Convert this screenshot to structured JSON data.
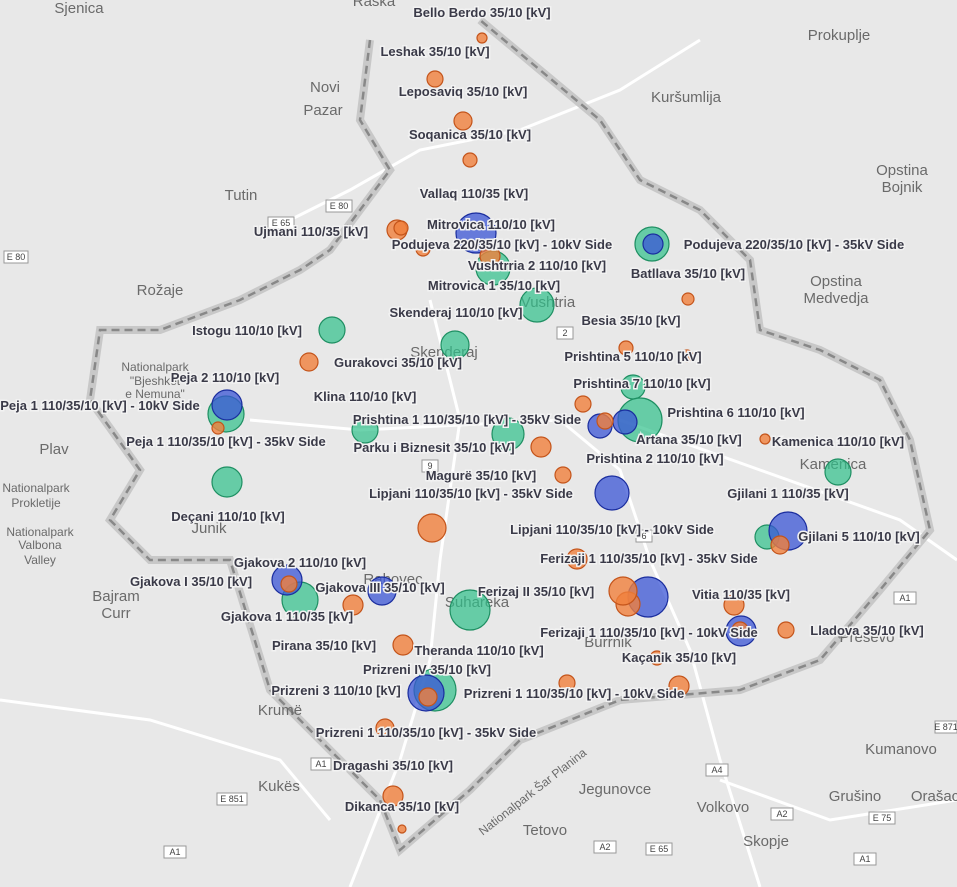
{
  "places": [
    "Sjenica",
    "Raška",
    "Prokuplje",
    "Novi",
    "Pazar",
    "Kuršumlija",
    "Opstina",
    "Bojnik",
    "Tutin",
    "Rožaje",
    "Opstina",
    "Medvedja",
    "Plav",
    "Nationalpark",
    "Prokletije",
    "Nationalpark",
    "Valbona",
    "Valley",
    "Junik",
    "Bajram",
    "Curr",
    "Rahovec",
    "Suhareka",
    "Burrnik",
    "Krumë",
    "Kukës",
    "Jegunovce",
    "Volkovo",
    "Tetovo",
    "Skopje",
    "Kumanovo",
    "Grušino",
    "Orašac",
    "Preševo",
    "Kamenica",
    "Vushtria",
    "Skenderaj",
    "Nationalpark",
    "\"Bjeshkët",
    "e Nemuna\"",
    "Nationalpark Šar Planina"
  ],
  "roads": [
    "E 65",
    "E 80",
    "E 80",
    "2",
    "9",
    "6",
    "A1",
    "A1",
    "E 851",
    "A4",
    "A2",
    "A2",
    "E 65",
    "E 75",
    "A1",
    "A1",
    "E 871"
  ],
  "substations": [
    "Bello Berdo 35/10 [kV]",
    "Leshak 35/10 [kV]",
    "Leposaviq 35/10 [kV]",
    "Soqanica 35/10 [kV]",
    "Vallaq 110/35 [kV]",
    "Mitrovica 110/10 [kV]",
    "Ujmani 110/35 [kV]",
    "Podujeva 220/35/10 [kV] - 10kV Side",
    "Podujeva 220/35/10 [kV] - 35kV Side",
    "Vushtrria 2 110/10 [kV]",
    "Batllava 35/10 [kV]",
    "Mitrovica 1 35/10 [kV]",
    "Skenderaj 110/10 [kV]",
    "Besia 35/10 [kV]",
    "Istogu 110/10 [kV]",
    "Prishtina 5 110/10 [kV]",
    "Gurakovci 35/10 [kV]",
    "Peja 2 110/10 [kV]",
    "Prishtina 7 110/10 [kV]",
    "Klina 110/10 [kV]",
    "Peja 1 110/35/10 [kV] - 10kV Side",
    "Prishtina 6 110/10 [kV]",
    "Prishtina 1 110/35/10 [kV] - 35kV Side",
    "Artana 35/10 [kV]",
    "Kamenica 110/10 [kV]",
    "Peja 1 110/35/10 [kV] - 35kV Side",
    "Parku i Biznesit 35/10 [kV]",
    "Prishtina 2 110/10 [kV]",
    "Magurë 35/10 [kV]",
    "Lipjani 110/35/10 [kV] - 35kV Side",
    "Gjilani 1 110/35 [kV]",
    "Deçani 110/10 [kV]",
    "Lipjani 110/35/10 [kV] - 10kV Side",
    "Gjilani 5 110/10 [kV]",
    "Ferizaji 1 110/35/10 [kV] - 35kV Side",
    "Gjakova 2 110/10 [kV]",
    "Gjakova I 35/10 [kV]",
    "Gjakova III 35/10 [kV]",
    "Ferizaj II 35/10 [kV]",
    "Vitia 110/35 [kV]",
    "Gjakova 1 110/35 [kV]",
    "Ferizaji 1 110/35/10 [kV] - 10kV Side",
    "Lladova 35/10 [kV]",
    "Pirana 35/10 [kV]",
    "Theranda 110/10 [kV]",
    "Kaçanik 35/10 [kV]",
    "Prizreni IV 35/10 [kV]",
    "Prizreni 3 110/10 [kV]",
    "Prizreni 1 110/35/10 [kV] - 10kV Side",
    "Prizreni 1 110/35/10 [kV] - 35kV Side",
    "Dragashi 35/10 [kV]",
    "Dikanca 35/10 [kV]"
  ]
}
